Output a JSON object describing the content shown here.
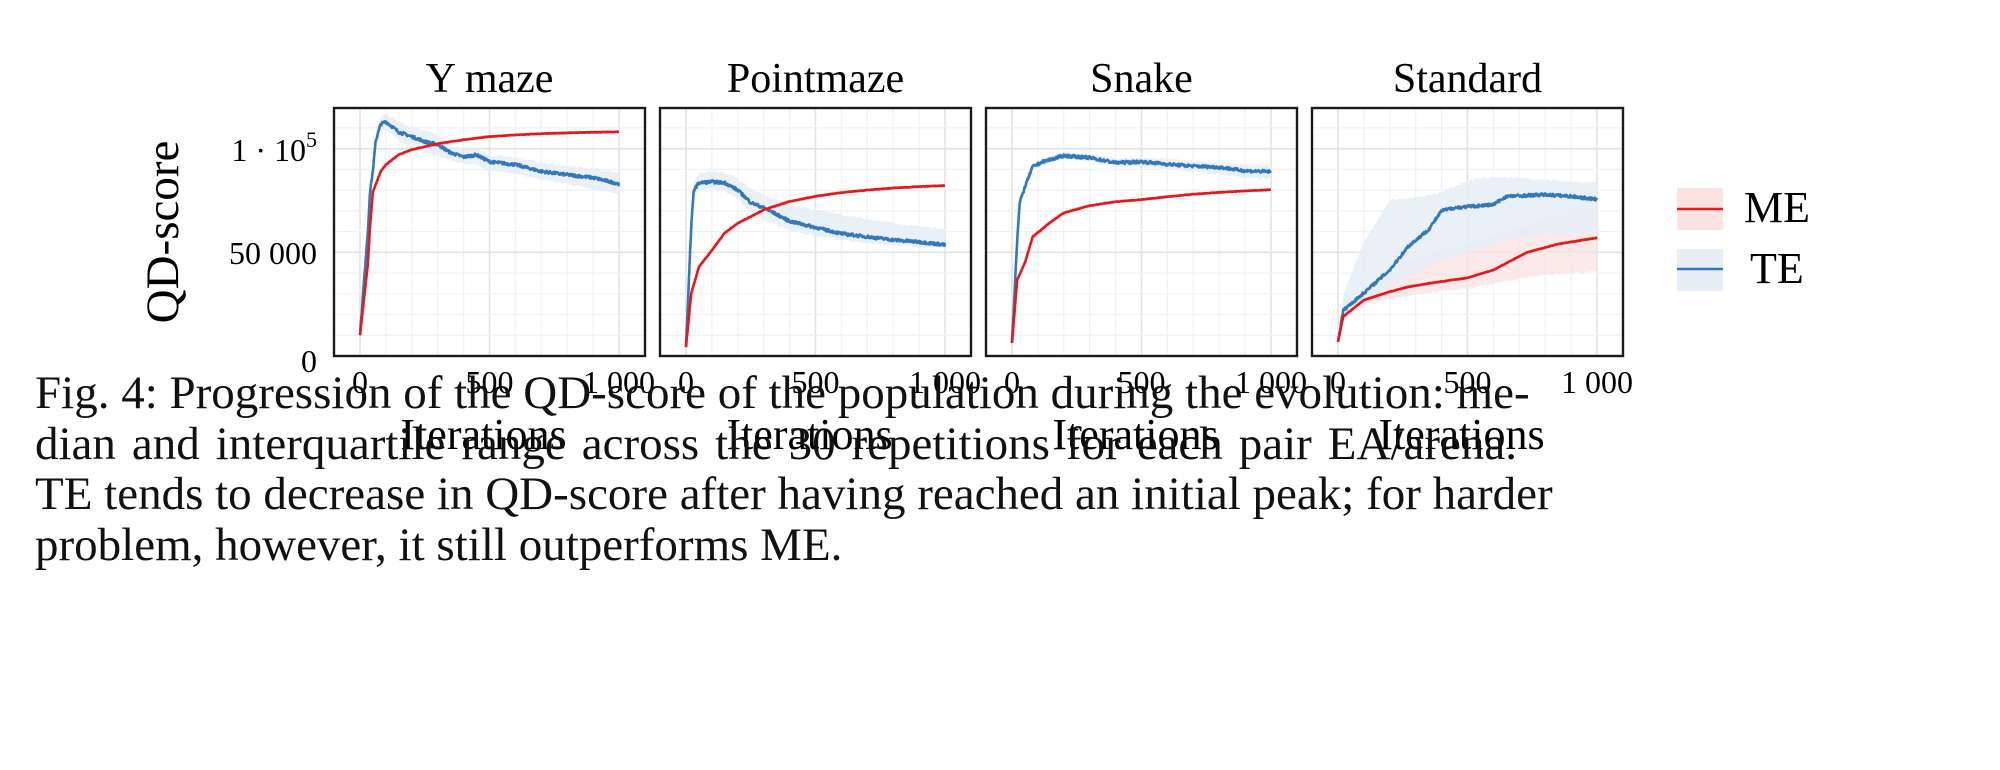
{
  "figure": {
    "caption_lines": [
      "Fig. 4: Progression of the QD-score of the population during the evolution: me-",
      "dian and interquartile range across the 30 repetitions for each pair EA/arena.",
      "TE tends to decrease in QD-score after having reached an initial peak; for harder",
      "problem, however, it still outperforms ME."
    ]
  },
  "colors": {
    "ME": "#e3191c",
    "ME_band": "#fbe2e3",
    "TE": "#3578b9",
    "TE_band": "#e6edf7",
    "grid_major": "#e2e2e2",
    "grid_minor": "#f1f1f1",
    "frame": "#1a1a1a"
  },
  "chart_data": {
    "type": "line",
    "ylabel": "QD-score",
    "xlabel": "Iterations",
    "xlim": [
      0,
      1000
    ],
    "ylim": [
      0,
      119600
    ],
    "x_ticks": [
      0,
      500,
      1000
    ],
    "x_tick_labels": [
      "0",
      "500",
      "1 000"
    ],
    "y_ticks": [
      0,
      50000,
      100000
    ],
    "y_tick_labels": [
      "0",
      "50 000",
      "1 · 10^5"
    ],
    "grid": true,
    "legend": {
      "placement": "right",
      "entries": [
        {
          "name": "ME",
          "label": "ME"
        },
        {
          "name": "TE",
          "label": "TE"
        }
      ]
    },
    "panels": [
      {
        "title": "Y maze",
        "series": [
          {
            "name": "ME",
            "x": [
              0,
              30,
              40,
              50,
              80,
              100,
              150,
              200,
              300,
              400,
              500,
              600,
              700,
              800,
              900,
              1000
            ],
            "median": [
              10000,
              44000,
              64700,
              79200,
              89000,
              92300,
              97100,
              99500,
              102400,
              104300,
              105800,
              106600,
              107200,
              107600,
              107900,
              108100
            ],
            "q1": [
              10000,
              43000,
              63500,
              78000,
              88000,
              91400,
              96300,
              98800,
              101800,
              103700,
              105300,
              106100,
              106700,
              107100,
              107400,
              107600
            ],
            "q3": [
              10000,
              45000,
              66000,
              80500,
              90000,
              93200,
              97900,
              100200,
              103000,
              104900,
              106300,
              107100,
              107700,
              108100,
              108400,
              108600
            ]
          },
          {
            "name": "TE",
            "x": [
              0,
              30,
              40,
              50,
              60,
              80,
              100,
              150,
              200,
              250,
              300,
              350,
              400,
              450,
              500,
              600,
              700,
              800,
              900,
              1000
            ],
            "median": [
              10600,
              60000,
              81000,
              89000,
              103500,
              111800,
              113000,
              108000,
              105800,
              103400,
              102000,
              98000,
              96000,
              97000,
              93700,
              92300,
              89000,
              87400,
              86000,
              83000
            ],
            "q1": [
              10600,
              56000,
              77000,
              86000,
              100000,
              108500,
              109500,
              104000,
              101000,
              98000,
              96500,
              94000,
              92500,
              92500,
              89500,
              88000,
              85000,
              83000,
              80500,
              78000
            ],
            "q3": [
              10600,
              64000,
              85000,
              93000,
              107000,
              115500,
              117000,
              113000,
              110500,
              108500,
              106500,
              102000,
              99500,
              100000,
              97000,
              96000,
              93000,
              91500,
              90500,
              88500
            ]
          }
        ]
      },
      {
        "title": "Pointmaze",
        "series": [
          {
            "name": "ME",
            "x": [
              0,
              20,
              50,
              100,
              150,
              200,
              300,
              400,
              500,
              600,
              700,
              800,
              900,
              1000
            ],
            "median": [
              4300,
              30000,
              43000,
              51000,
              59400,
              64000,
              70500,
              74500,
              77000,
              78800,
              80000,
              81000,
              81700,
              82200
            ],
            "q1": [
              4300,
              28500,
              41500,
              49500,
              58000,
              62800,
              69500,
              73700,
              76300,
              78200,
              79400,
              80400,
              81200,
              81700
            ],
            "q3": [
              4300,
              31500,
              44500,
              52500,
              60800,
              65200,
              71500,
              75300,
              77700,
              79400,
              80600,
              81600,
              82200,
              82700
            ]
          },
          {
            "name": "TE",
            "x": [
              0,
              20,
              30,
              50,
              100,
              150,
              200,
              250,
              300,
              400,
              500,
              600,
              700,
              800,
              900,
              1000
            ],
            "median": [
              4300,
              62000,
              80000,
              83500,
              84000,
              83500,
              80000,
              74000,
              71500,
              65000,
              62000,
              59000,
              57500,
              56000,
              55000,
              53600
            ],
            "q1": [
              4300,
              58000,
              76000,
              80000,
              80500,
              79500,
              76000,
              69000,
              66000,
              60500,
              58000,
              56000,
              54500,
              53500,
              52500,
              52000
            ],
            "q3": [
              4300,
              66000,
              84000,
              88000,
              89000,
              88500,
              85500,
              80500,
              78000,
              73000,
              70500,
              68000,
              66000,
              64000,
              62500,
              61000
            ]
          }
        ]
      },
      {
        "title": "Snake",
        "series": [
          {
            "name": "ME",
            "x": [
              0,
              20,
              50,
              80,
              150,
              200,
              300,
              400,
              500,
              600,
              700,
              800,
              900,
              1000
            ],
            "median": [
              6300,
              36700,
              45000,
              57500,
              64700,
              69000,
              72500,
              74400,
              75400,
              76800,
              78000,
              78900,
              79600,
              80200
            ],
            "q1": [
              6300,
              35000,
              43500,
              56000,
              63500,
              68000,
              71700,
              73700,
              74800,
              76200,
              77400,
              78300,
              79000,
              79600
            ],
            "q3": [
              6300,
              38500,
              46500,
              59000,
              66000,
              70000,
              73300,
              75100,
              76000,
              77400,
              78600,
              79500,
              80200,
              80800
            ]
          },
          {
            "name": "TE",
            "x": [
              0,
              20,
              30,
              50,
              80,
              120,
              200,
              300,
              400,
              500,
              600,
              700,
              800,
              900,
              1000
            ],
            "median": [
              6300,
              56000,
              74000,
              81600,
              91300,
              93700,
              96600,
              95600,
              93200,
              93700,
              92500,
              91600,
              91000,
              89300,
              88900
            ],
            "q1": [
              6300,
              53000,
              71000,
              79000,
              89500,
              92000,
              95000,
              94000,
              91500,
              91500,
              90000,
              88800,
              87500,
              86000,
              85200
            ],
            "q3": [
              6300,
              59000,
              77000,
              84000,
              93000,
              95500,
              98300,
              97500,
              95500,
              95800,
              95000,
              94200,
              93200,
              92300,
              91800
            ]
          }
        ]
      },
      {
        "title": "Standard",
        "series": [
          {
            "name": "ME",
            "x": [
              0,
              20,
              100,
              200,
              270,
              350,
              500,
              600,
              730,
              850,
              1000
            ],
            "median": [
              6800,
              19000,
              27000,
              31000,
              33300,
              35000,
              37700,
              41500,
              50000,
              54000,
              57000
            ],
            "q1": [
              6800,
              17500,
              24500,
              27500,
              29000,
              30500,
              32500,
              35000,
              38000,
              39500,
              41000
            ],
            "q3": [
              6800,
              21000,
              32000,
              40000,
              45000,
              49000,
              54000,
              58000,
              63000,
              68000,
              72000
            ]
          },
          {
            "name": "TE",
            "x": [
              0,
              20,
              100,
              200,
              270,
              350,
              400,
              450,
              500,
              600,
              650,
              800,
              900,
              1000
            ],
            "median": [
              6800,
              22000,
              30400,
              41500,
              52700,
              61000,
              70000,
              71500,
              72000,
              73000,
              77000,
              77800,
              77000,
              75500
            ],
            "q1": [
              6800,
              19500,
              27000,
              33500,
              38500,
              43000,
              46000,
              48000,
              50000,
              54000,
              56000,
              58500,
              59000,
              59500
            ],
            "q3": [
              6800,
              30000,
              55000,
              75000,
              76000,
              77500,
              79000,
              82000,
              84500,
              86500,
              86000,
              85000,
              84000,
              83800
            ]
          }
        ]
      }
    ]
  }
}
